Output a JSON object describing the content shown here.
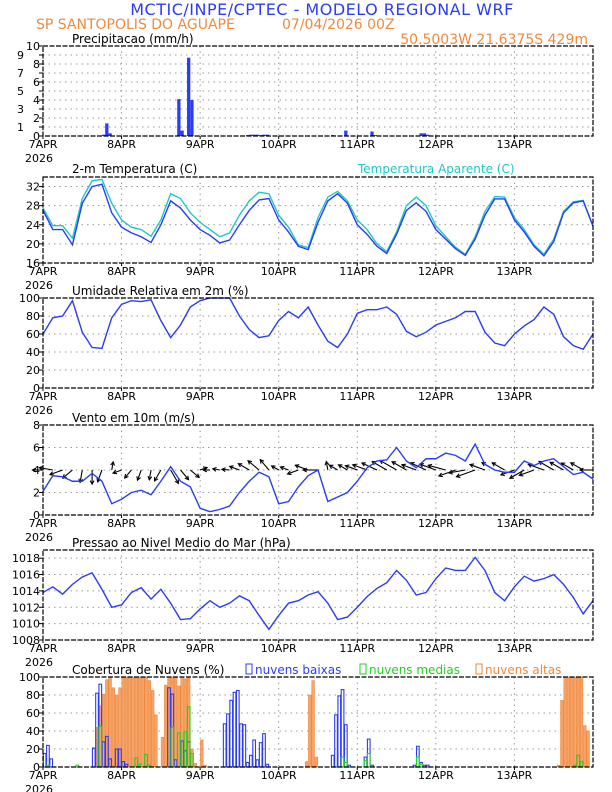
{
  "header": {
    "title": "MCTIC/INPE/CPTEC - MODELO REGIONAL WRF",
    "location": "SP SANTOPOLIS DO AGUAPE",
    "run": "07/04/2026 00Z",
    "coords": "50.5003W 21.6375S 429m"
  },
  "colors": {
    "blue": "#2b3cf5",
    "cyan": "#1fc8c8",
    "green": "#1ed21e",
    "orange": "#f0883a",
    "title_blue": "#2b3cf5",
    "subtitle_orange": "#f08a3c"
  },
  "x_axis": {
    "labels": [
      "7APR",
      "8APR",
      "9APR",
      "10APR",
      "11APR",
      "12APR",
      "13APR"
    ],
    "year": "2026",
    "grid": true
  },
  "times": [
    "07APR 00Z",
    "07APR 03Z",
    "07APR 06Z",
    "07APR 09Z",
    "07APR 12Z",
    "07APR 15Z",
    "07APR 18Z",
    "07APR 21Z",
    "08APR 00Z",
    "08APR 03Z",
    "08APR 06Z",
    "08APR 09Z",
    "08APR 12Z",
    "08APR 15Z",
    "08APR 18Z",
    "08APR 21Z",
    "09APR 00Z",
    "09APR 03Z",
    "09APR 06Z",
    "09APR 09Z",
    "09APR 12Z",
    "09APR 15Z",
    "09APR 18Z",
    "09APR 21Z",
    "10APR 00Z",
    "10APR 03Z",
    "10APR 06Z",
    "10APR 09Z",
    "10APR 12Z",
    "10APR 15Z",
    "10APR 18Z",
    "10APR 21Z",
    "11APR 00Z",
    "11APR 03Z",
    "11APR 06Z",
    "11APR 09Z",
    "11APR 12Z",
    "11APR 15Z",
    "11APR 18Z",
    "11APR 21Z",
    "12APR 00Z",
    "12APR 03Z",
    "12APR 06Z",
    "12APR 09Z",
    "12APR 12Z",
    "12APR 15Z",
    "12APR 18Z",
    "12APR 21Z",
    "13APR 00Z",
    "13APR 03Z",
    "13APR 06Z",
    "13APR 09Z",
    "13APR 12Z",
    "13APR 15Z",
    "13APR 18Z",
    "13APR 21Z",
    "14APR 00Z"
  ],
  "chart_data": [
    {
      "id": "precip",
      "type": "bar",
      "title": "Precipitacao (mm/h)",
      "ylim": [
        0,
        10
      ],
      "yticks": [
        0,
        1,
        2,
        3,
        4,
        5,
        6,
        7,
        8,
        9,
        10
      ],
      "grid": true,
      "series": [
        {
          "color": "#2b3cf5",
          "points": [
            [
              "07APR 18Z",
              0.15
            ],
            [
              "07APR 19Z",
              1.4
            ],
            [
              "07APR 20Z",
              0.3
            ],
            [
              "08APR 17Z",
              4.1
            ],
            [
              "08APR 18Z",
              0.6
            ],
            [
              "08APR 20Z",
              8.7
            ],
            [
              "08APR 21Z",
              4.0
            ],
            [
              "09APR 14Z",
              0.1
            ],
            [
              "09APR 15Z",
              0.15
            ],
            [
              "09APR 16Z",
              0.15
            ],
            [
              "09APR 17Z",
              0.15
            ],
            [
              "09APR 18Z",
              0.1
            ],
            [
              "09APR 19Z",
              0.15
            ],
            [
              "09APR 20Z",
              0.15
            ],
            [
              "10APR 16Z",
              0.1
            ],
            [
              "10APR 20Z",
              0.6
            ],
            [
              "11APR 04Z",
              0.5
            ],
            [
              "11APR 05Z",
              0.1
            ],
            [
              "11APR 19Z",
              0.3
            ],
            [
              "11APR 20Z",
              0.3
            ],
            [
              "11APR 21Z",
              0.15
            ]
          ]
        }
      ]
    },
    {
      "id": "temp",
      "type": "line",
      "title": "2-m Temperatura (C)",
      "ylim": [
        16,
        34
      ],
      "yticks": [
        16,
        20,
        24,
        28,
        32
      ],
      "grid": true,
      "series": [
        {
          "color": "#2b3cf5",
          "values": [
            27,
            23,
            23,
            19.8,
            28.5,
            32,
            32.5,
            26.5,
            23.5,
            22.3,
            21.5,
            20.3,
            24,
            29,
            27.5,
            25,
            23,
            21.8,
            20.2,
            20.8,
            24,
            27,
            29.2,
            29.5,
            25,
            22.5,
            19.5,
            18.8,
            24.5,
            29,
            30.5,
            28.5,
            24,
            22,
            19.5,
            18,
            22,
            27,
            28.6,
            26.8,
            23,
            21,
            19,
            17.6,
            21,
            26,
            29.4,
            29.4,
            25,
            22.5,
            19.5,
            17.5,
            20.5,
            26.5,
            28.6,
            29,
            23.7
          ]
        },
        {
          "name": "Temperatura Aparente (C)",
          "color": "#1fc8c8",
          "values": [
            27.5,
            23.8,
            23.8,
            21.2,
            29.5,
            33.2,
            33.5,
            28.5,
            25,
            23.5,
            23,
            21.6,
            25,
            30.5,
            29.5,
            26.5,
            24.5,
            23,
            21.5,
            22.3,
            26,
            29,
            30.8,
            30.5,
            26,
            23.5,
            19.8,
            19.2,
            25.5,
            29.8,
            31,
            29,
            25,
            23,
            20,
            18.4,
            22.5,
            28,
            29.8,
            28,
            23.8,
            21.5,
            19.3,
            17.8,
            21.5,
            26.8,
            29.9,
            29.8,
            25.5,
            23,
            19.8,
            17.8,
            21,
            26.8,
            28.8,
            29.1,
            23.8
          ]
        }
      ]
    },
    {
      "id": "rh",
      "type": "line",
      "title": "Umidade Relativa em 2m (%)",
      "ylim": [
        0,
        100
      ],
      "yticks": [
        0,
        20,
        40,
        60,
        80,
        100
      ],
      "grid": true,
      "series": [
        {
          "color": "#2b3cf5",
          "values": [
            60,
            78,
            80,
            97,
            62,
            45,
            44,
            78,
            93,
            97,
            96,
            98,
            75,
            56,
            70,
            90,
            97,
            100,
            100,
            100,
            80,
            65,
            56,
            58,
            75,
            85,
            78,
            90,
            70,
            52,
            45,
            60,
            83,
            87,
            87,
            90,
            82,
            63,
            57,
            62,
            70,
            74,
            78,
            85,
            85,
            62,
            50,
            47,
            60,
            69,
            76,
            90,
            82,
            57,
            47,
            43,
            60
          ]
        }
      ]
    },
    {
      "id": "wind",
      "type": "line",
      "title": "Vento em 10m (m/s)",
      "ylim": [
        0,
        8
      ],
      "yticks": [
        0,
        2,
        4,
        6,
        8
      ],
      "grid": true,
      "series": [
        {
          "color": "#2b3cf5",
          "values": [
            2.1,
            3.5,
            3.4,
            3.0,
            3.0,
            3.7,
            3.0,
            1.0,
            1.4,
            2.0,
            2.2,
            1.8,
            3.0,
            4.3,
            3.0,
            2.5,
            0.6,
            0.3,
            0.5,
            0.8,
            2.0,
            3.0,
            3.8,
            3.4,
            1.0,
            1.2,
            2.5,
            3.5,
            4.0,
            1.2,
            1.6,
            2.0,
            3.0,
            4.2,
            4.8,
            4.9,
            6.0,
            4.8,
            4.2,
            5.0,
            5.0,
            5.5,
            5.3,
            4.8,
            6.3,
            4.5,
            4.0,
            3.8,
            3.8,
            4.8,
            4.4,
            4.8,
            5.0,
            4.3,
            3.6,
            3.8,
            3.2
          ]
        }
      ],
      "arrow_angle_deg": [
        180,
        170,
        200,
        220,
        260,
        270,
        250,
        80,
        200,
        230,
        250,
        260,
        240,
        300,
        310,
        320,
        20,
        180,
        170,
        175,
        160,
        150,
        140,
        130,
        150,
        160,
        200,
        160,
        180,
        100,
        150,
        150,
        160,
        160,
        155,
        150,
        150,
        150,
        160,
        155,
        160,
        165,
        200,
        190,
        200,
        160,
        150,
        150,
        200,
        210,
        200,
        160,
        150,
        150,
        150,
        150,
        180
      ]
    },
    {
      "id": "pressure",
      "type": "line",
      "title": "Pressao ao Nivel Medio do Mar (hPa)",
      "ylim": [
        1008,
        1019
      ],
      "yticks": [
        1008,
        1010,
        1012,
        1014,
        1016,
        1018
      ],
      "grid": true,
      "series": [
        {
          "color": "#2b3cf5",
          "values": [
            1013.8,
            1014.5,
            1013.6,
            1014.8,
            1015.7,
            1016.2,
            1014.2,
            1012.0,
            1012.3,
            1013.8,
            1014.4,
            1013.0,
            1014.2,
            1012.5,
            1010.5,
            1010.6,
            1011.8,
            1012.8,
            1012.0,
            1012.5,
            1013.4,
            1012.8,
            1011.0,
            1009.3,
            1011.0,
            1012.5,
            1012.8,
            1013.5,
            1013.9,
            1012.5,
            1010.5,
            1010.8,
            1012.0,
            1013.3,
            1014.3,
            1015.0,
            1016.5,
            1015.3,
            1013.5,
            1013.8,
            1015.5,
            1016.8,
            1016.5,
            1016.5,
            1018.1,
            1016.5,
            1013.8,
            1012.8,
            1014.5,
            1015.8,
            1015.2,
            1015.5,
            1016.0,
            1014.8,
            1013.2,
            1011.2,
            1012.8
          ]
        }
      ]
    },
    {
      "id": "clouds",
      "type": "bar",
      "title": "Cobertura de Nuvens (%)",
      "ylim": [
        0,
        100
      ],
      "yticks": [
        0,
        20,
        40,
        60,
        80,
        100
      ],
      "grid": true,
      "series": [
        {
          "name": "nuvens altas",
          "color": "#f0883a",
          "points": [
            [
              "07APR 16Z",
              44
            ],
            [
              "07APR 17Z",
              68
            ],
            [
              "07APR 18Z",
              81
            ],
            [
              "07APR 19Z",
              97
            ],
            [
              "07APR 20Z",
              100
            ],
            [
              "07APR 21Z",
              88
            ],
            [
              "07APR 22Z",
              80
            ],
            [
              "07APR 23Z",
              88
            ],
            [
              "08APR 00Z",
              100
            ],
            [
              "08APR 01Z",
              100
            ],
            [
              "08APR 02Z",
              100
            ],
            [
              "08APR 03Z",
              100
            ],
            [
              "08APR 04Z",
              100
            ],
            [
              "08APR 05Z",
              100
            ],
            [
              "08APR 06Z",
              100
            ],
            [
              "08APR 07Z",
              100
            ],
            [
              "08APR 08Z",
              96
            ],
            [
              "08APR 09Z",
              85
            ],
            [
              "08APR 10Z",
              58
            ],
            [
              "08APR 12Z",
              33
            ],
            [
              "08APR 13Z",
              91
            ],
            [
              "08APR 14Z",
              100
            ],
            [
              "08APR 15Z",
              100
            ],
            [
              "08APR 16Z",
              100
            ],
            [
              "08APR 17Z",
              90
            ],
            [
              "08APR 18Z",
              100
            ],
            [
              "08APR 19Z",
              98
            ],
            [
              "08APR 20Z",
              100
            ],
            [
              "08APR 21Z",
              20
            ],
            [
              "08APR 22Z",
              4
            ],
            [
              "09APR 00Z",
              30
            ],
            [
              "09APR 01Z",
              2
            ],
            [
              "10APR 08Z",
              6
            ],
            [
              "10APR 09Z",
              80
            ],
            [
              "10APR 10Z",
              96
            ],
            [
              "10APR 11Z",
              11
            ],
            [
              "13APR 13Z",
              2
            ],
            [
              "13APR 14Z",
              74
            ],
            [
              "13APR 15Z",
              100
            ],
            [
              "13APR 16Z",
              100
            ],
            [
              "13APR 17Z",
              100
            ],
            [
              "13APR 18Z",
              100
            ],
            [
              "13APR 19Z",
              100
            ],
            [
              "13APR 20Z",
              100
            ],
            [
              "13APR 21Z",
              46
            ],
            [
              "13APR 22Z",
              40
            ]
          ]
        },
        {
          "name": "nuvens baixas",
          "color": "#2b3cf5",
          "points": [
            [
              "07APR 00Z",
              15
            ],
            [
              "07APR 01Z",
              24
            ],
            [
              "07APR 02Z",
              9
            ],
            [
              "07APR 15Z",
              21
            ],
            [
              "07APR 16Z",
              82
            ],
            [
              "07APR 17Z",
              92
            ],
            [
              "07APR 18Z",
              28
            ],
            [
              "07APR 19Z",
              34
            ],
            [
              "07APR 20Z",
              9
            ],
            [
              "07APR 22Z",
              20
            ],
            [
              "07APR 23Z",
              20
            ],
            [
              "08APR 00Z",
              6
            ],
            [
              "08APR 01Z",
              3
            ],
            [
              "08APR 14Z",
              88
            ],
            [
              "08APR 15Z",
              81
            ],
            [
              "08APR 16Z",
              8
            ],
            [
              "08APR 18Z",
              29
            ],
            [
              "08APR 19Z",
              18
            ],
            [
              "08APR 20Z",
              28
            ],
            [
              "09APR 07Z",
              48
            ],
            [
              "09APR 08Z",
              59
            ],
            [
              "09APR 09Z",
              74
            ],
            [
              "09APR 10Z",
              83
            ],
            [
              "09APR 11Z",
              85
            ],
            [
              "09APR 12Z",
              48
            ],
            [
              "09APR 13Z",
              47
            ],
            [
              "09APR 14Z",
              5
            ],
            [
              "09APR 15Z",
              13
            ],
            [
              "09APR 16Z",
              30
            ],
            [
              "09APR 17Z",
              8
            ],
            [
              "09APR 18Z",
              27
            ],
            [
              "09APR 19Z",
              37
            ],
            [
              "09APR 20Z",
              3
            ],
            [
              "10APR 16Z",
              13
            ],
            [
              "10APR 17Z",
              58
            ],
            [
              "10APR 18Z",
              79
            ],
            [
              "10APR 19Z",
              86
            ],
            [
              "10APR 20Z",
              47
            ],
            [
              "10APR 21Z",
              2
            ],
            [
              "11APR 02Z",
              11
            ],
            [
              "11APR 03Z",
              31
            ],
            [
              "11APR 04Z",
              2
            ],
            [
              "11APR 17Z",
              2
            ],
            [
              "11APR 18Z",
              23
            ],
            [
              "11APR 19Z",
              5
            ],
            [
              "11APR 20Z",
              2
            ],
            [
              "11APR 21Z",
              2
            ]
          ]
        },
        {
          "name": "nuvens medias",
          "color": "#1ed21e",
          "points": [
            [
              "07APR 01Z",
              2
            ],
            [
              "07APR 10Z",
              2
            ],
            [
              "07APR 17Z",
              45
            ],
            [
              "08APR 04Z",
              10
            ],
            [
              "08APR 05Z",
              3
            ],
            [
              "08APR 07Z",
              14
            ],
            [
              "08APR 08Z",
              2
            ],
            [
              "08APR 15Z",
              44
            ],
            [
              "08APR 17Z",
              38
            ],
            [
              "08APR 19Z",
              39
            ],
            [
              "08APR 20Z",
              67
            ],
            [
              "08APR 21Z",
              15
            ],
            [
              "10APR 19Z",
              11
            ],
            [
              "10APR 20Z",
              5
            ],
            [
              "11APR 02Z",
              7
            ],
            [
              "11APR 03Z",
              15
            ],
            [
              "11APR 18Z",
              11
            ],
            [
              "11APR 19Z",
              3
            ],
            [
              "13APR 18Z",
              2
            ],
            [
              "13APR 19Z",
              13
            ],
            [
              "13APR 20Z",
              6
            ]
          ]
        }
      ]
    }
  ],
  "legend": {
    "low": "nuvens baixas",
    "mid": "nuvens medias",
    "high": "nuvens altas"
  }
}
